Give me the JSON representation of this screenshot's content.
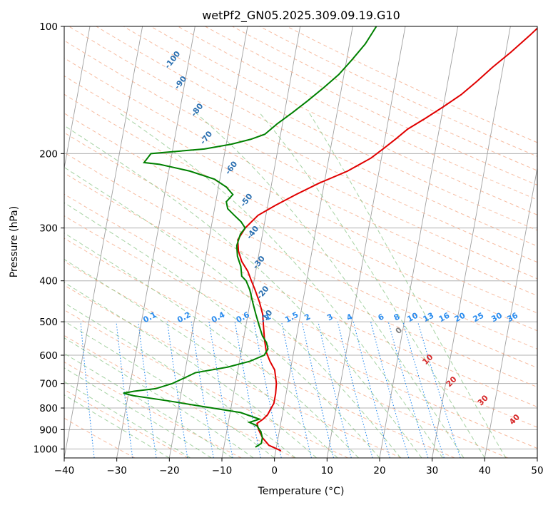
{
  "chart_data": {
    "type": "line",
    "title": "wetPf2_GN05.2025.309.09.19.G10",
    "xlabel": "Temperature (°C)",
    "ylabel": "Pressure (hPa)",
    "xlim": [
      -40,
      50
    ],
    "ylim": [
      1050,
      100
    ],
    "y_scale": "log",
    "grid": true,
    "x_ticks": [
      "−40",
      "−30",
      "−20",
      "−10",
      "0",
      "10",
      "20",
      "30",
      "40",
      "50"
    ],
    "x_tick_values": [
      -40,
      -30,
      -20,
      -10,
      0,
      10,
      20,
      30,
      40,
      50
    ],
    "y_ticks": [
      "100",
      "200",
      "300",
      "400",
      "500",
      "600",
      "700",
      "800",
      "900",
      "1000"
    ],
    "y_tick_values": [
      100,
      200,
      300,
      400,
      500,
      600,
      700,
      800,
      900,
      1000
    ],
    "series": [
      {
        "color": "#e00000",
        "points": [
          [
            1.0,
            1010
          ],
          [
            -1.5,
            980
          ],
          [
            -3.0,
            940
          ],
          [
            -4.0,
            900
          ],
          [
            -4.5,
            870
          ],
          [
            -3.5,
            850
          ],
          [
            -2.8,
            830
          ],
          [
            -2.5,
            810
          ],
          [
            -2.0,
            780
          ],
          [
            -2.0,
            740
          ],
          [
            -2.2,
            700
          ],
          [
            -3.0,
            650
          ],
          [
            -4.2,
            620
          ],
          [
            -5.2,
            590
          ],
          [
            -6.0,
            550
          ],
          [
            -6.5,
            520
          ],
          [
            -7.2,
            480
          ],
          [
            -8.2,
            450
          ],
          [
            -9.5,
            420
          ],
          [
            -10.5,
            400
          ],
          [
            -11.5,
            380
          ],
          [
            -13.0,
            360
          ],
          [
            -14.0,
            340
          ],
          [
            -14.5,
            320
          ],
          [
            -13.5,
            300
          ],
          [
            -11.5,
            280
          ],
          [
            -8.5,
            265
          ],
          [
            -5.0,
            250
          ],
          [
            -1.0,
            235
          ],
          [
            4.0,
            220
          ],
          [
            8.0,
            205
          ],
          [
            10.0,
            195
          ],
          [
            12.0,
            185
          ],
          [
            14.0,
            175
          ],
          [
            17.0,
            165
          ],
          [
            20.0,
            155
          ],
          [
            23.0,
            145
          ],
          [
            25.5,
            135
          ],
          [
            28.0,
            125
          ],
          [
            31.0,
            115
          ],
          [
            34.0,
            105
          ],
          [
            35.5,
            100
          ]
        ]
      },
      {
        "color": "#008000",
        "points": [
          [
            -4.0,
            990
          ],
          [
            -3.0,
            970
          ],
          [
            -3.0,
            940
          ],
          [
            -3.5,
            910
          ],
          [
            -4.5,
            880
          ],
          [
            -6.0,
            865
          ],
          [
            -4.2,
            850
          ],
          [
            -8.0,
            820
          ],
          [
            -15.0,
            795
          ],
          [
            -22.0,
            770
          ],
          [
            -29.0,
            748
          ],
          [
            -31.0,
            738
          ],
          [
            -29.0,
            730
          ],
          [
            -25.0,
            720
          ],
          [
            -22.0,
            700
          ],
          [
            -20.0,
            680
          ],
          [
            -18.0,
            660
          ],
          [
            -12.0,
            640
          ],
          [
            -8.0,
            620
          ],
          [
            -5.5,
            600
          ],
          [
            -5.0,
            580
          ],
          [
            -5.5,
            560
          ],
          [
            -6.5,
            540
          ],
          [
            -7.5,
            510
          ],
          [
            -8.5,
            480
          ],
          [
            -9.5,
            450
          ],
          [
            -10.5,
            420
          ],
          [
            -11.5,
            400
          ],
          [
            -12.5,
            390
          ],
          [
            -13.0,
            370
          ],
          [
            -14.0,
            350
          ],
          [
            -14.5,
            330
          ],
          [
            -14.2,
            310
          ],
          [
            -13.5,
            300
          ],
          [
            -14.5,
            290
          ],
          [
            -16.0,
            280
          ],
          [
            -17.5,
            270
          ],
          [
            -18.0,
            260
          ],
          [
            -17.0,
            250
          ],
          [
            -18.5,
            240
          ],
          [
            -21.0,
            230
          ],
          [
            -26.0,
            220
          ],
          [
            -32.0,
            212
          ],
          [
            -35.0,
            210
          ],
          [
            -34.5,
            205
          ],
          [
            -34.0,
            200
          ],
          [
            -30.0,
            198
          ],
          [
            -24.0,
            195
          ],
          [
            -19.0,
            190
          ],
          [
            -15.5,
            185
          ],
          [
            -13.0,
            180
          ],
          [
            -11.0,
            170
          ],
          [
            -8.5,
            160
          ],
          [
            -6.0,
            150
          ],
          [
            -3.5,
            140
          ],
          [
            -1.0,
            130
          ],
          [
            1.0,
            120
          ],
          [
            3.0,
            110
          ],
          [
            4.5,
            100
          ]
        ]
      }
    ],
    "dry_adiabat_labels": [
      "-100",
      "-90",
      "-80",
      "-70",
      "-60",
      "-50",
      "-40",
      "-30",
      "-20",
      "-10"
    ],
    "dry_adiabat_label_pos": [
      [
        -32.7,
        121
      ],
      [
        -30.4,
        137
      ],
      [
        -26.3,
        159
      ],
      [
        -23.6,
        185
      ],
      [
        -17.8,
        218
      ],
      [
        -13.8,
        260
      ],
      [
        -11.5,
        310
      ],
      [
        -9.3,
        365
      ],
      [
        -7.5,
        430
      ],
      [
        -6.0,
        490
      ]
    ],
    "mixing_ratio_labels": [
      "0.1",
      "0.2",
      "0.4",
      "0.6",
      "1",
      "1.5",
      "2",
      "3",
      "4",
      "6",
      "8",
      "10",
      "13",
      "16",
      "20",
      "25",
      "30",
      "36"
    ],
    "mixing_ratio_label_x": [
      -23.5,
      -17.0,
      -10.5,
      -5.8,
      -1.0,
      3.5,
      6.5,
      10.8,
      14.5,
      20.5,
      23.5,
      26.5,
      29.5,
      32.5,
      35.5,
      39.0,
      42.5,
      45.5
    ],
    "moist_adiabat_labels": [
      "0",
      "10",
      "20",
      "30",
      "40"
    ],
    "moist_adiabat_label_pos": [
      [
        24.0,
        530
      ],
      [
        29.5,
        620
      ],
      [
        34.0,
        700
      ],
      [
        40.0,
        775
      ],
      [
        46.0,
        860
      ]
    ],
    "colors": {
      "temperature": "#e00000",
      "dewpoint": "#008000",
      "isobar": "#b0b0b0",
      "isotherm": "#a0a0a0",
      "dry_adiabat": "#f4a582",
      "moist_adiabat": "#7fbf7b",
      "mixing_ratio": "#2b8cee",
      "dry_label": "#2a6fb0",
      "moist_label_zero": "#808080",
      "moist_label": "#d62728",
      "mr_label": "#2b8cee"
    }
  }
}
